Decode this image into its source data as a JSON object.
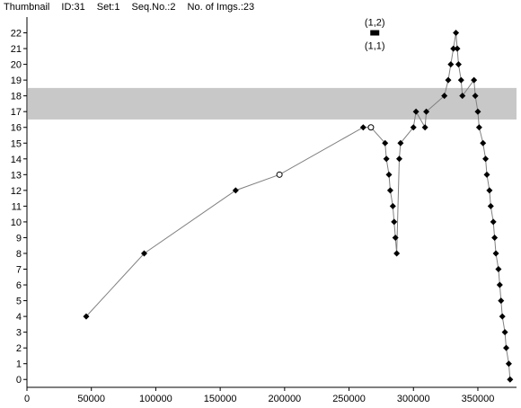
{
  "header": {
    "items": [
      "Thumbnail",
      "ID:31",
      "Set:1",
      "Seq.No.:2",
      "No. of Imgs.:23"
    ]
  },
  "chart_data": {
    "type": "scatter",
    "title": "",
    "xlabel": "",
    "ylabel": "",
    "xlim": [
      0,
      380000
    ],
    "ylim": [
      -0.5,
      23
    ],
    "xticks": [
      0,
      50000,
      100000,
      150000,
      200000,
      250000,
      300000,
      350000
    ],
    "xtick_labels": [
      "0",
      "50000",
      "100000",
      "150000",
      "200000",
      "250000",
      "300000",
      "350000"
    ],
    "yticks": [
      0,
      1,
      2,
      3,
      4,
      5,
      6,
      7,
      8,
      9,
      10,
      11,
      12,
      13,
      14,
      15,
      16,
      17,
      18,
      19,
      20,
      21,
      22
    ],
    "ytick_labels": [
      "0",
      "1",
      "2",
      "3",
      "4",
      "5",
      "6",
      "7",
      "8",
      "9",
      "10",
      "11",
      "12",
      "13",
      "14",
      "15",
      "16",
      "17",
      "18",
      "19",
      "20",
      "21",
      "22"
    ],
    "band": {
      "y_from": 16.5,
      "y_to": 18.5,
      "color": "#c8c8c8"
    },
    "line_color": "#808080",
    "marker_color": "#000000",
    "series": [
      {
        "marker": "diamond",
        "points": [
          [
            46000,
            4
          ],
          [
            91000,
            8
          ],
          [
            162000,
            12
          ],
          [
            261000,
            16
          ],
          [
            278000,
            15
          ],
          [
            279000,
            14
          ],
          [
            281000,
            13
          ],
          [
            282000,
            12
          ],
          [
            284000,
            11
          ],
          [
            285000,
            10
          ],
          [
            286000,
            9
          ],
          [
            287000,
            8
          ],
          [
            289000,
            14
          ],
          [
            290000,
            15
          ],
          [
            300000,
            16
          ],
          [
            302000,
            17
          ],
          [
            309000,
            16
          ],
          [
            310000,
            17
          ],
          [
            324000,
            18
          ],
          [
            327000,
            19
          ],
          [
            329000,
            20
          ],
          [
            331000,
            21
          ],
          [
            333000,
            22
          ],
          [
            334000,
            21
          ],
          [
            335000,
            20
          ],
          [
            337000,
            19
          ],
          [
            338000,
            18
          ],
          [
            347000,
            19
          ],
          [
            348000,
            18
          ],
          [
            350000,
            17
          ],
          [
            351000,
            16
          ],
          [
            354000,
            15
          ],
          [
            356000,
            14
          ],
          [
            357000,
            13
          ],
          [
            359000,
            12
          ],
          [
            360000,
            11
          ],
          [
            362000,
            10
          ],
          [
            363000,
            9
          ],
          [
            364000,
            8
          ],
          [
            366000,
            7
          ],
          [
            367000,
            6
          ],
          [
            368000,
            5
          ],
          [
            369000,
            4
          ],
          [
            371000,
            3
          ],
          [
            372000,
            2
          ],
          [
            374000,
            1
          ],
          [
            375000,
            0
          ]
        ]
      },
      {
        "marker": "open-circle",
        "points": [
          [
            196000,
            13
          ],
          [
            267000,
            16
          ]
        ]
      }
    ],
    "line_path": [
      [
        46000,
        4
      ],
      [
        91000,
        8
      ],
      [
        162000,
        12
      ],
      [
        196000,
        13
      ],
      [
        261000,
        16
      ],
      [
        267000,
        16
      ],
      [
        278000,
        15
      ],
      [
        279000,
        14
      ],
      [
        281000,
        13
      ],
      [
        282000,
        12
      ],
      [
        284000,
        11
      ],
      [
        285000,
        10
      ],
      [
        286000,
        9
      ],
      [
        287000,
        8
      ],
      [
        289000,
        14
      ],
      [
        290000,
        15
      ],
      [
        300000,
        16
      ],
      [
        302000,
        17
      ],
      [
        309000,
        16
      ],
      [
        310000,
        17
      ],
      [
        324000,
        18
      ],
      [
        327000,
        19
      ],
      [
        329000,
        20
      ],
      [
        331000,
        21
      ],
      [
        333000,
        22
      ],
      [
        334000,
        21
      ],
      [
        335000,
        20
      ],
      [
        337000,
        19
      ],
      [
        338000,
        18
      ],
      [
        347000,
        19
      ],
      [
        348000,
        18
      ],
      [
        350000,
        17
      ],
      [
        351000,
        16
      ],
      [
        354000,
        15
      ],
      [
        356000,
        14
      ],
      [
        357000,
        13
      ],
      [
        359000,
        12
      ],
      [
        360000,
        11
      ],
      [
        362000,
        10
      ],
      [
        363000,
        9
      ],
      [
        364000,
        8
      ],
      [
        366000,
        7
      ],
      [
        367000,
        6
      ],
      [
        368000,
        5
      ],
      [
        369000,
        4
      ],
      [
        371000,
        3
      ],
      [
        372000,
        2
      ],
      [
        374000,
        1
      ],
      [
        375000,
        0
      ]
    ],
    "annotations": [
      {
        "text": "(1,2)",
        "position": "above-marker"
      },
      {
        "text": "(1,1)",
        "position": "below-marker"
      }
    ],
    "annotation_marker": {
      "x": 270000,
      "y": 22,
      "shape": "rect"
    }
  }
}
